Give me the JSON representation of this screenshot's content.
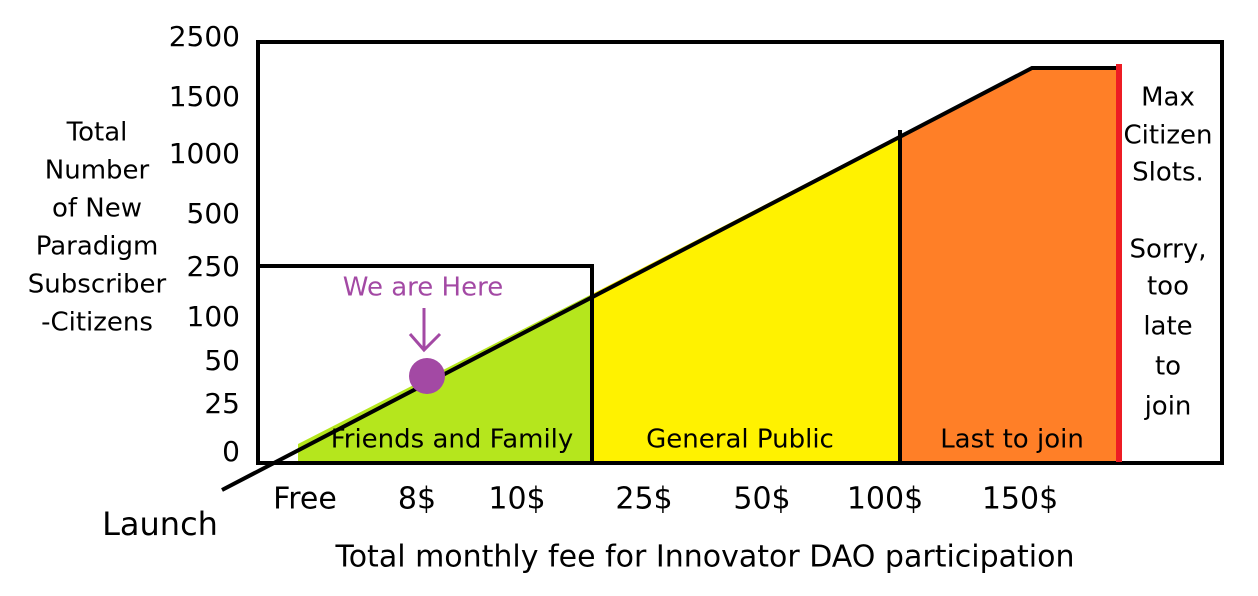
{
  "y_axis": {
    "title_lines": [
      "Total",
      "Number",
      "of New",
      "Paradigm",
      "Subscriber",
      "-Citizens"
    ],
    "ticks": [
      "2500",
      "1500",
      "1000",
      "500",
      "250",
      "100",
      "50",
      "25",
      "0"
    ]
  },
  "x_axis": {
    "title": "Total monthly fee for Innovator DAO participation",
    "origin_label": "Launch",
    "ticks": [
      "Free",
      "8$",
      "10$",
      "25$",
      "50$",
      "100$",
      "150$"
    ]
  },
  "regions": [
    "Friends and Family",
    "General Public",
    "Last to join"
  ],
  "annotation": "We are Here",
  "side_note_lines": [
    "Max",
    "Citizen",
    "Slots.",
    "Sorry,",
    "too",
    "late",
    "to",
    "join"
  ]
}
